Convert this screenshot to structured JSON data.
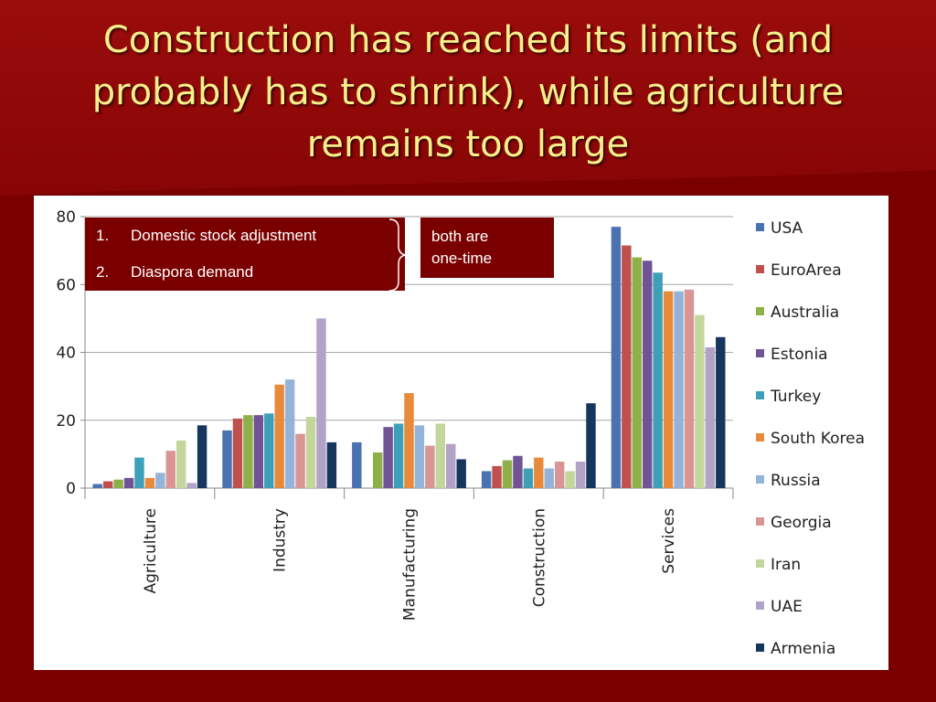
{
  "slide": {
    "title": "Construction has reached its limits (and probably has to shrink), while agriculture remains too large"
  },
  "notes": {
    "list": [
      {
        "num": "1.",
        "text": "Domestic stock adjustment"
      },
      {
        "num": "2.",
        "text": "Diaspora demand"
      }
    ],
    "bracket_note": "both are one-time"
  },
  "colors": {
    "background": "#7a0000",
    "title": "#f7f08c"
  },
  "chart_data": {
    "type": "bar",
    "categories": [
      "Agriculture",
      "Industry",
      "Manufacturing",
      "Construction",
      "Services"
    ],
    "ylim": [
      0,
      80
    ],
    "yticks": [
      0,
      20,
      40,
      60,
      80
    ],
    "grid": true,
    "legend_position": "right",
    "series": [
      {
        "name": "USA",
        "color": "#4a72b0",
        "values": [
          1.2,
          17,
          13.5,
          5,
          77
        ]
      },
      {
        "name": "EuroArea",
        "color": "#c0504d",
        "values": [
          2,
          20.5,
          0,
          6.5,
          71.5
        ]
      },
      {
        "name": "Australia",
        "color": "#8db048",
        "values": [
          2.5,
          21.5,
          10.5,
          8.2,
          68
        ]
      },
      {
        "name": "Estonia",
        "color": "#6f5394",
        "values": [
          3,
          21.5,
          18,
          9.5,
          67
        ]
      },
      {
        "name": "Turkey",
        "color": "#3ea0b8",
        "values": [
          9,
          22,
          19,
          5.8,
          63.5
        ]
      },
      {
        "name": "South Korea",
        "color": "#e88a3c",
        "values": [
          3,
          30.5,
          28,
          9,
          58
        ]
      },
      {
        "name": "Russia",
        "color": "#94b3d8",
        "values": [
          4.5,
          32,
          18.5,
          5.8,
          58
        ]
      },
      {
        "name": "Georgia",
        "color": "#d99594",
        "values": [
          11,
          16,
          12.5,
          7.8,
          58.5
        ]
      },
      {
        "name": "Iran",
        "color": "#c3d69b",
        "values": [
          14,
          21,
          19,
          5,
          51
        ]
      },
      {
        "name": "UAE",
        "color": "#b2a2c7",
        "values": [
          1.5,
          50,
          13,
          7.8,
          41.5
        ]
      },
      {
        "name": "Armenia",
        "color": "#17365d",
        "values": [
          18.5,
          13.5,
          8.5,
          25,
          44.5
        ]
      }
    ]
  }
}
